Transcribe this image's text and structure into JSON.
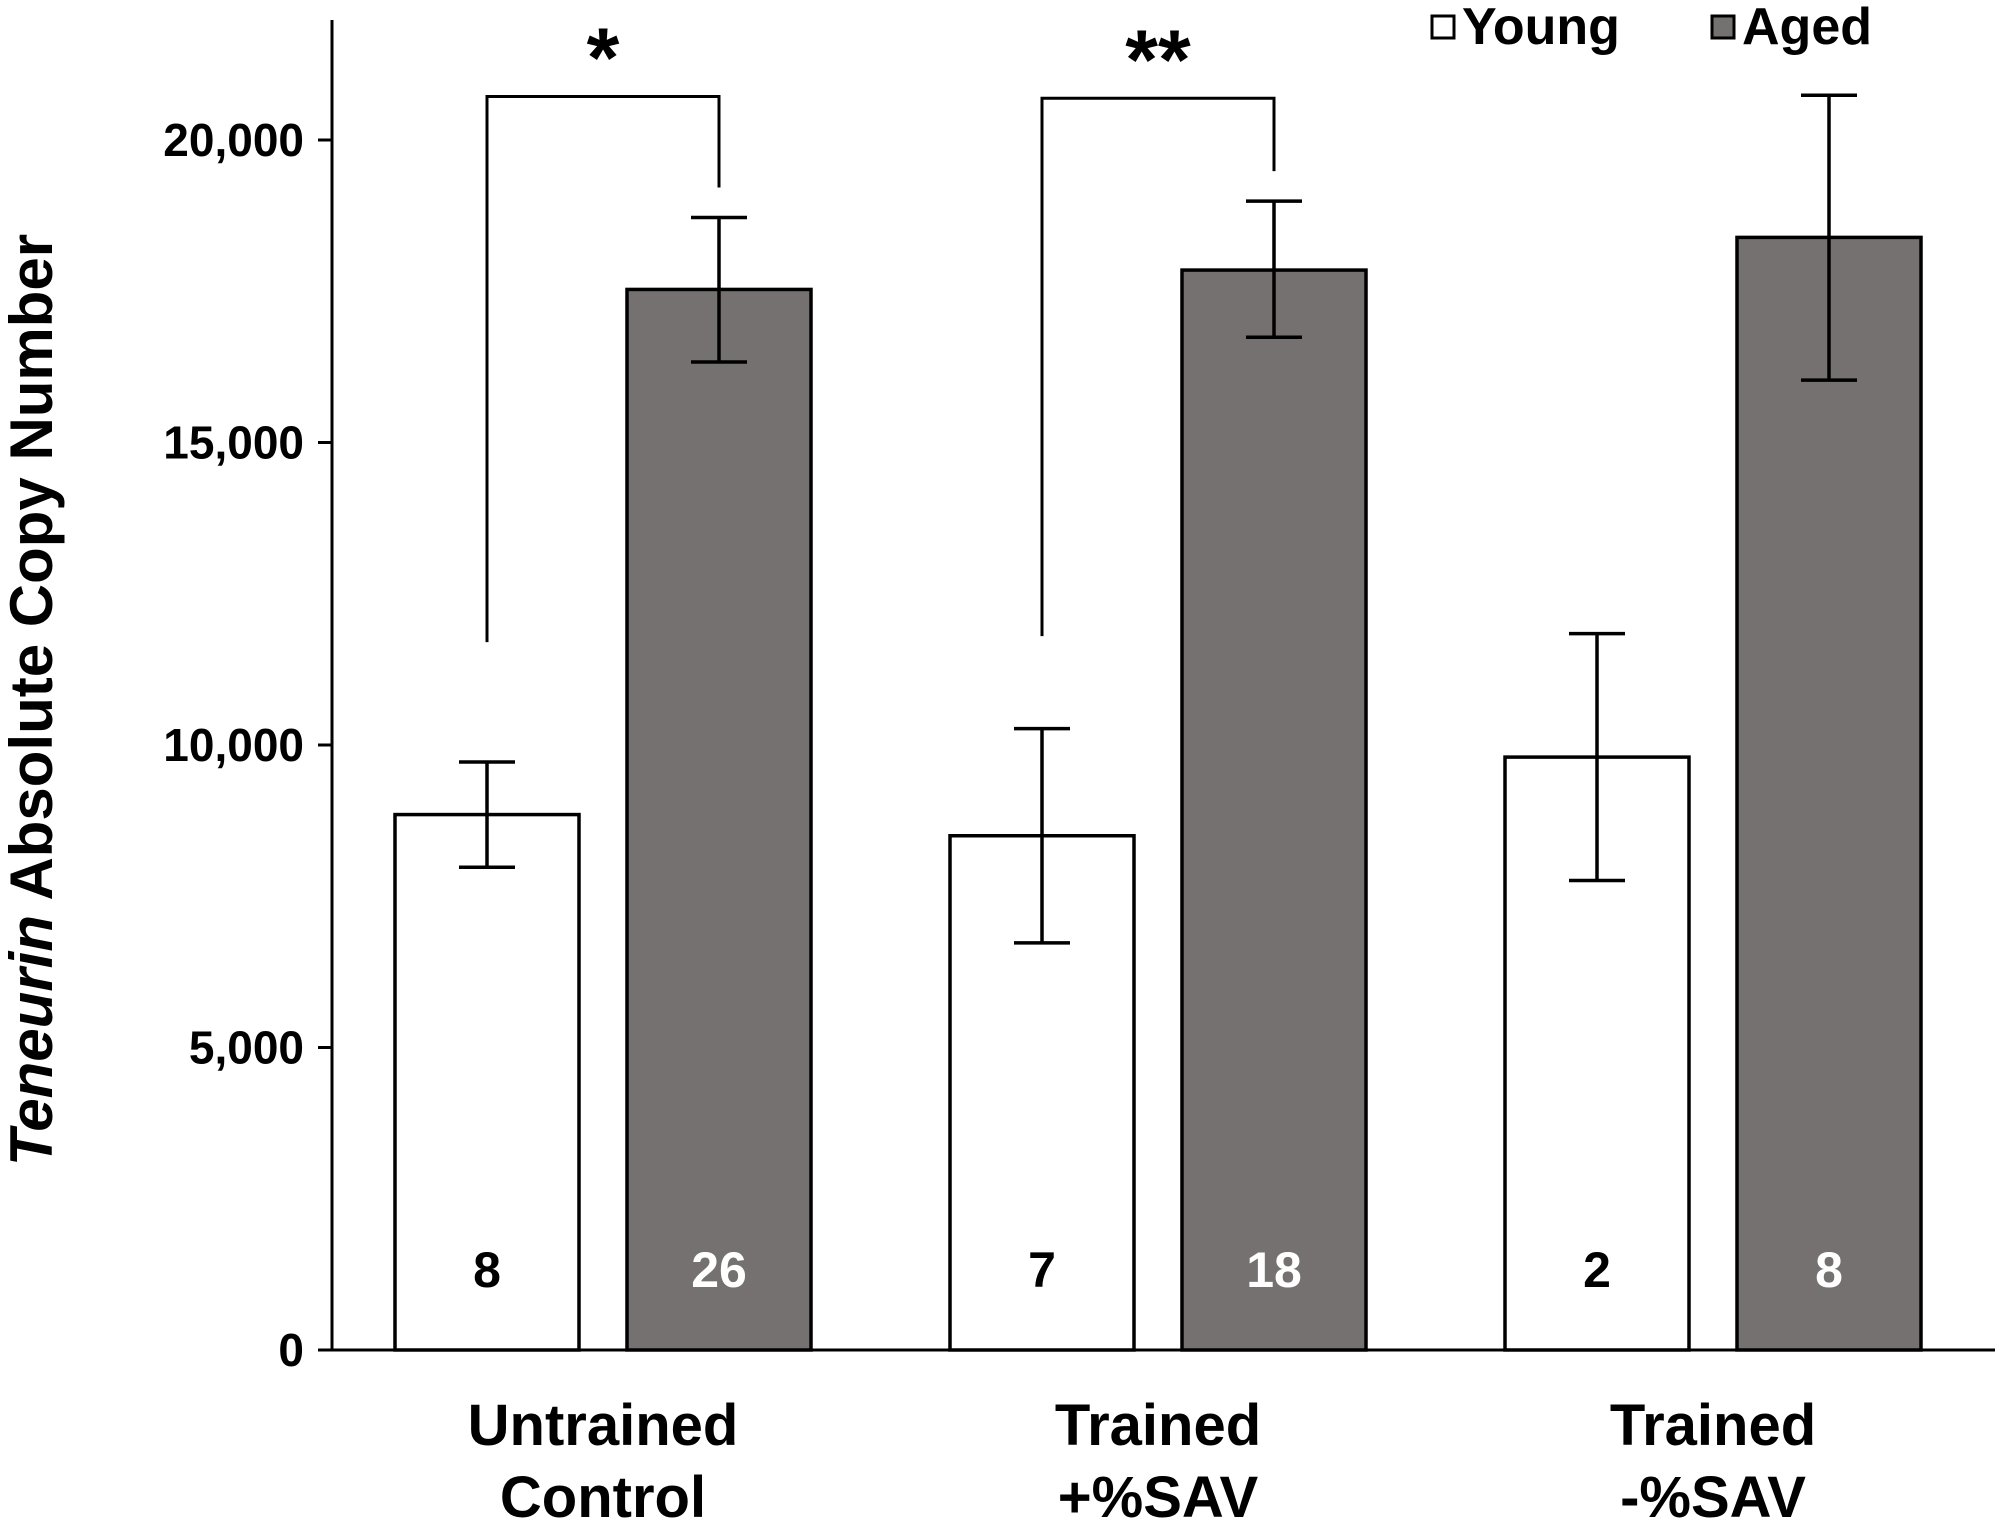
{
  "chart_data": {
    "type": "bar",
    "title": "",
    "xlabel": "",
    "ylabel_italic": "Teneurin",
    "ylabel_rest": " Absolute Copy Number",
    "categories": [
      [
        "Untrained",
        "Control"
      ],
      [
        "Trained",
        "+%SAV"
      ],
      [
        "Trained",
        "-%SAV"
      ]
    ],
    "series": [
      {
        "name": "Young",
        "color": "#ffffff",
        "values": [
          8850,
          8500,
          9800
        ],
        "error_low": [
          7980,
          6730,
          7760
        ],
        "error_high": [
          9720,
          10270,
          11840
        ],
        "n": [
          "8",
          "7",
          "2"
        ],
        "n_color": "#000000"
      },
      {
        "name": "Aged",
        "color": "#767171",
        "values": [
          17530,
          17850,
          18390
        ],
        "error_low": [
          16330,
          16740,
          16030
        ],
        "error_high": [
          18720,
          18990,
          20740
        ],
        "n": [
          "26",
          "18",
          "8"
        ],
        "n_color": "#ffffff"
      }
    ],
    "ylim": [
      0,
      22000
    ],
    "yticks": [
      0,
      5000,
      10000,
      15000,
      20000
    ],
    "ytick_labels": [
      "0",
      "5,000",
      "10,000",
      "15,000",
      "20,000"
    ],
    "legend": {
      "position": "top-right",
      "entries": [
        "Young",
        "Aged"
      ]
    },
    "significance": [
      {
        "category": 0,
        "label": "*",
        "left_y": 11700,
        "top_y": 20720
      },
      {
        "category": 1,
        "label": "**",
        "left_y": 11800,
        "top_y": 20690
      }
    ]
  }
}
